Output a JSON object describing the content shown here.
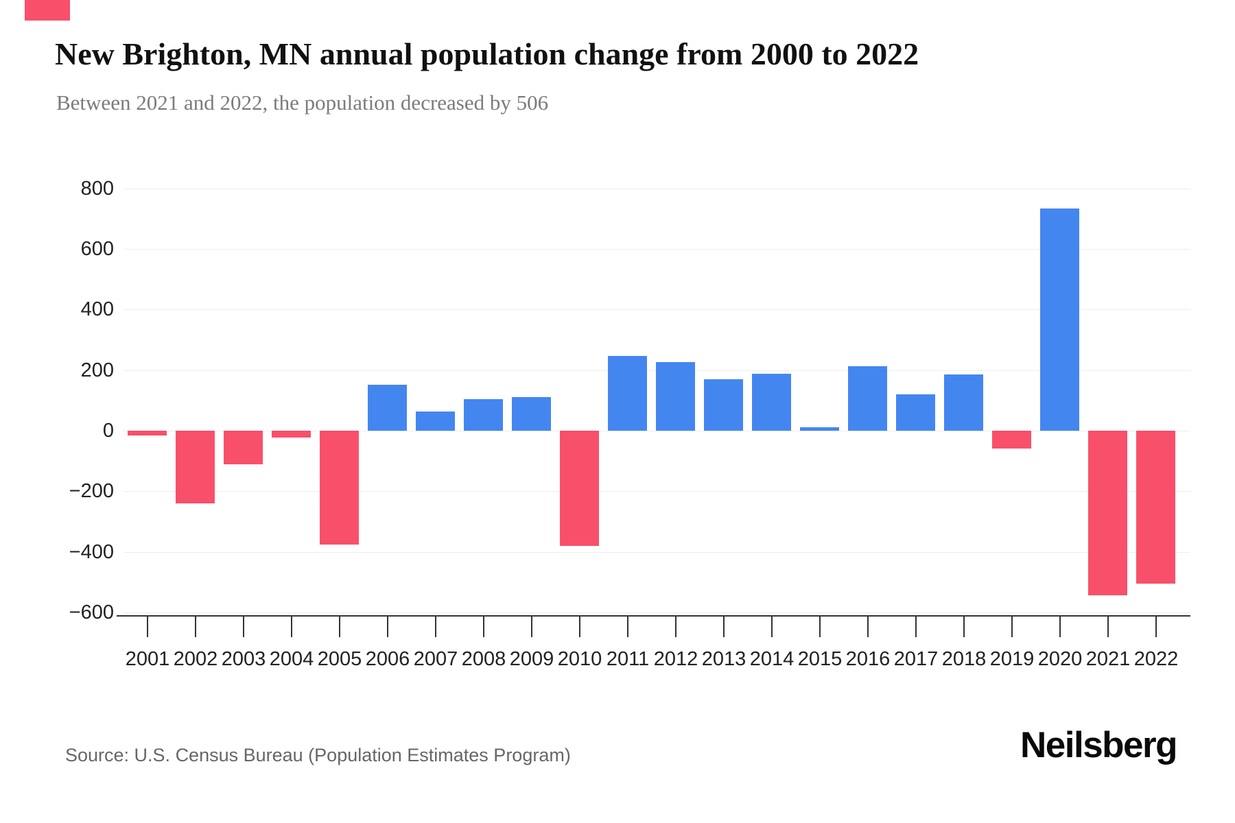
{
  "header": {
    "title": "New Brighton, MN annual population change from 2000 to 2022",
    "subtitle": "Between 2021 and 2022, the population decreased by 506"
  },
  "accent_color": "#f8506b",
  "footer": {
    "source": "Source: U.S. Census Bureau (Population Estimates Program)",
    "brand": "Neilsberg"
  },
  "chart_data": {
    "type": "bar",
    "title": "New Brighton, MN annual population change from 2000 to 2022",
    "subtitle": "Between 2021 and 2022, the population decreased by 506",
    "categories": [
      "2001",
      "2002",
      "2003",
      "2004",
      "2005",
      "2006",
      "2007",
      "2008",
      "2009",
      "2010",
      "2011",
      "2012",
      "2013",
      "2014",
      "2015",
      "2016",
      "2017",
      "2018",
      "2019",
      "2020",
      "2021",
      "2022"
    ],
    "values": [
      -15,
      -240,
      -110,
      -22,
      -375,
      152,
      64,
      104,
      112,
      -380,
      246,
      227,
      171,
      187,
      11,
      213,
      119,
      186,
      -58,
      733,
      -543,
      -506
    ],
    "xlabel": "",
    "ylabel": "",
    "ylim": [
      -600,
      800
    ],
    "yticks": [
      800,
      600,
      400,
      200,
      0,
      -200,
      -400,
      -600
    ],
    "grid": true,
    "legend": false,
    "positive_color": "#4486f0",
    "negative_color": "#f8506b"
  }
}
